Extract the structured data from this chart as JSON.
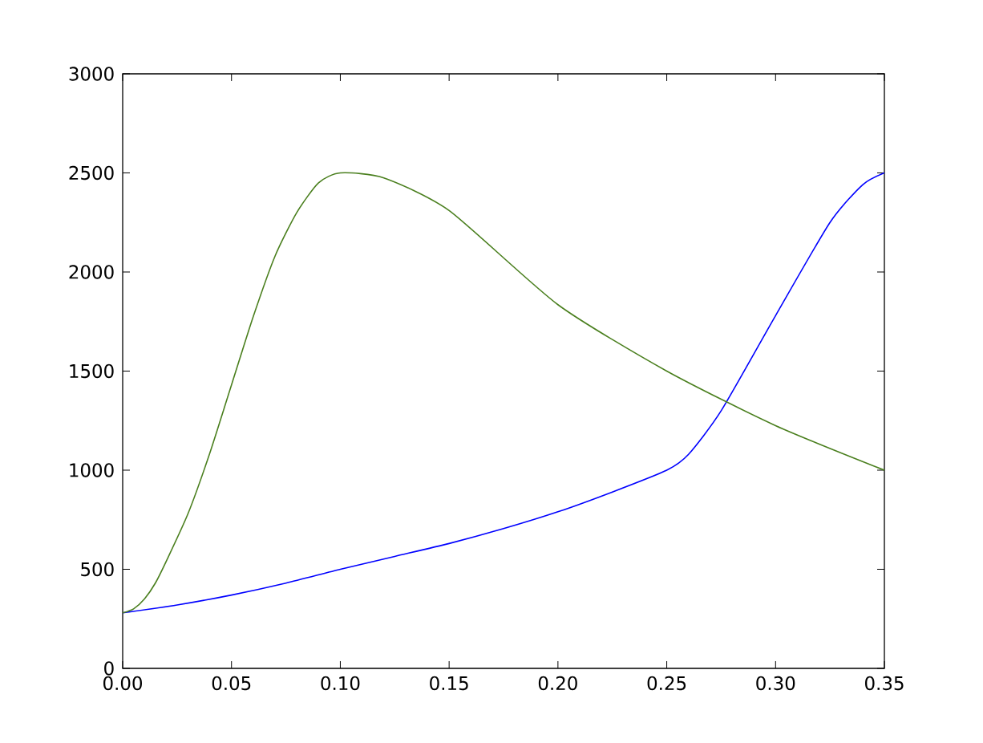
{
  "chart_data": {
    "type": "line",
    "xlim": [
      0,
      0.35
    ],
    "ylim": [
      0,
      3000
    ],
    "xticks": [
      {
        "value": 0,
        "label": "0.00"
      },
      {
        "value": 0.05,
        "label": "0.05"
      },
      {
        "value": 0.1,
        "label": "0.10"
      },
      {
        "value": 0.15,
        "label": "0.15"
      },
      {
        "value": 0.2,
        "label": "0.20"
      },
      {
        "value": 0.25,
        "label": "0.25"
      },
      {
        "value": 0.3,
        "label": "0.30"
      },
      {
        "value": 0.35,
        "label": "0.35"
      }
    ],
    "yticks": [
      0,
      500,
      1000,
      1500,
      2000,
      2500,
      3000
    ],
    "marker": "none",
    "line_style": "solid",
    "series": [
      {
        "color": "#0000ff",
        "x": [
          0,
          0.025,
          0.05,
          0.075,
          0.1,
          0.125,
          0.15,
          0.175,
          0.2,
          0.225,
          0.25,
          0.26,
          0.275,
          0.3,
          0.325,
          0.34,
          0.35
        ],
        "values": [
          280,
          320,
          370,
          430,
          500,
          565,
          630,
          705,
          790,
          890,
          1000,
          1080,
          1300,
          1780,
          2250,
          2440,
          2500
        ]
      },
      {
        "color": "#4a7f1e",
        "x": [
          0,
          0.005,
          0.01,
          0.015,
          0.02,
          0.03,
          0.04,
          0.05,
          0.06,
          0.07,
          0.08,
          0.09,
          0.1,
          0.12,
          0.15,
          0.2,
          0.25,
          0.3,
          0.35
        ],
        "values": [
          280,
          300,
          350,
          430,
          540,
          780,
          1085,
          1430,
          1775,
          2080,
          2300,
          2450,
          2500,
          2475,
          2310,
          1835,
          1500,
          1225,
          1000
        ]
      }
    ]
  }
}
